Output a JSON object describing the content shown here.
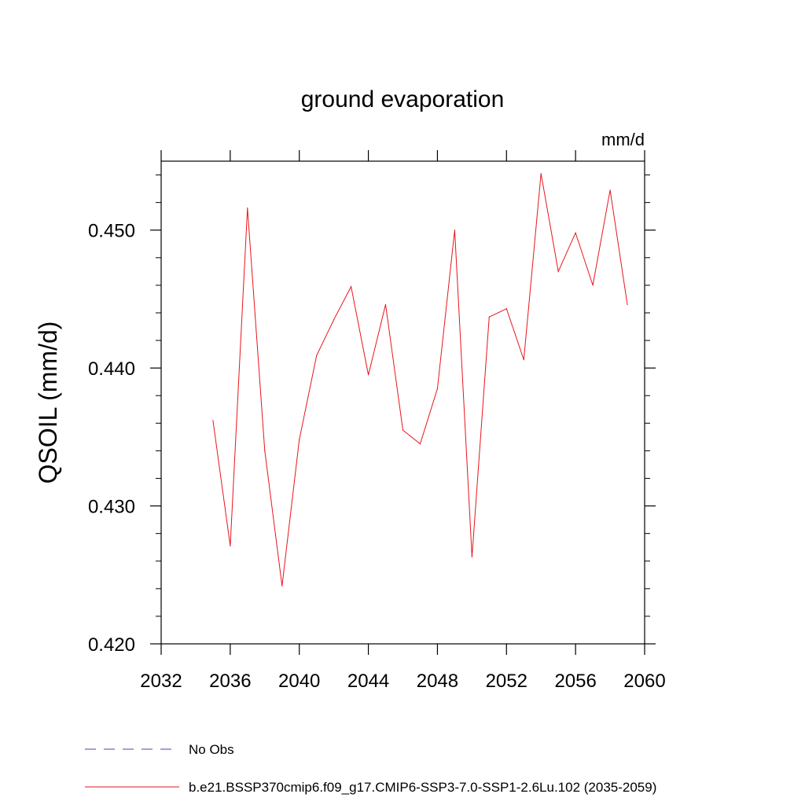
{
  "chart_data": {
    "type": "line",
    "title": "ground evaporation",
    "units_label": "mm/d",
    "ylabel": "QSOIL  (mm/d)",
    "xlabel": "",
    "xlim": [
      2032,
      2060
    ],
    "ylim": [
      0.42,
      0.455
    ],
    "x_ticks": [
      2032,
      2036,
      2040,
      2044,
      2048,
      2052,
      2056,
      2060
    ],
    "x_tick_labels": [
      "2032",
      "2036",
      "2040",
      "2044",
      "2048",
      "2052",
      "2056",
      "2060"
    ],
    "y_ticks": [
      0.42,
      0.43,
      0.44,
      0.45
    ],
    "y_tick_labels": [
      "0.420",
      "0.430",
      "0.440",
      "0.450"
    ],
    "grid": false,
    "legend_position": "bottom-left",
    "series": [
      {
        "name": "b.e21.BSSP370cmip6.f09_g17.CMIP6-SSP3-7.0-SSP1-2.6Lu.102 (2035-2059)",
        "color": "#e8141b",
        "style": "solid",
        "x": [
          2035,
          2036,
          2037,
          2038,
          2039,
          2040,
          2041,
          2042,
          2043,
          2044,
          2045,
          2046,
          2047,
          2048,
          2049,
          2050,
          2051,
          2052,
          2053,
          2054,
          2055,
          2056,
          2057,
          2058,
          2059
        ],
        "values": [
          0.4362,
          0.4271,
          0.4516,
          0.434,
          0.4242,
          0.4348,
          0.4409,
          0.4435,
          0.4459,
          0.4395,
          0.4446,
          0.4355,
          0.4345,
          0.4385,
          0.45,
          0.4263,
          0.4437,
          0.4443,
          0.4406,
          0.4541,
          0.447,
          0.4498,
          0.446,
          0.4529,
          0.4446
        ]
      }
    ],
    "legend": [
      {
        "label": "No Obs",
        "color": "#4b3fb8",
        "style": "dashed"
      },
      {
        "label": "b.e21.BSSP370cmip6.f09_g17.CMIP6-SSP3-7.0-SSP1-2.6Lu.102 (2035-2059)",
        "color": "#e8141b",
        "style": "solid"
      }
    ]
  }
}
